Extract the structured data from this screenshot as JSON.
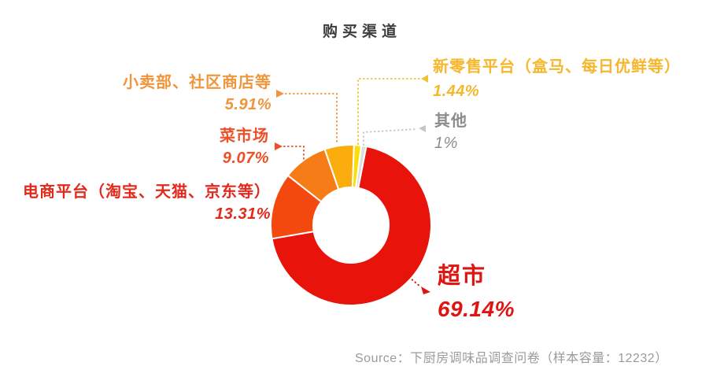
{
  "page": {
    "background": "#ffffff"
  },
  "title": "购买渠道",
  "source_note": "Source：下厨房调味品调查问卷（样本容量：12232）",
  "chart_data": {
    "type": "pie",
    "subtype": "donut",
    "title": "购买渠道",
    "unit": "%",
    "start_angle_deg": 11,
    "direction": "clockwise",
    "legend_position": "callout-labels",
    "hole_color": "#ffffff",
    "slices": [
      {
        "label": "超市",
        "value": 69.14,
        "display": "69.14%",
        "color": "#e8130b",
        "label_color": "#de1510",
        "leader_color": "#de1510"
      },
      {
        "label": "电商平台（淘宝、天猫、京东等）",
        "value": 13.31,
        "display": "13.31%",
        "color": "#f3490e",
        "label_color": "#e3291c",
        "leader_color": "#e3291c"
      },
      {
        "label": "菜市场",
        "value": 9.07,
        "display": "9.07%",
        "color": "#f57c17",
        "label_color": "#ef4e26",
        "leader_color": "#ef4e26"
      },
      {
        "label": "小卖部、社区商店等",
        "value": 5.91,
        "display": "5.91%",
        "color": "#faad0c",
        "label_color": "#f0953c",
        "leader_color": "#f0953c"
      },
      {
        "label": "新零售平台（盒马、每日优鲜等）",
        "value": 1.44,
        "display": "1.44%",
        "color": "#fbde07",
        "label_color": "#f5b72d",
        "leader_color": "#f0c23c"
      },
      {
        "label": "其他",
        "value": 1,
        "display": "1%",
        "color": "#dcdcdc",
        "label_color": "#8c8c8c",
        "leader_color": "#c6c6c6"
      }
    ]
  }
}
